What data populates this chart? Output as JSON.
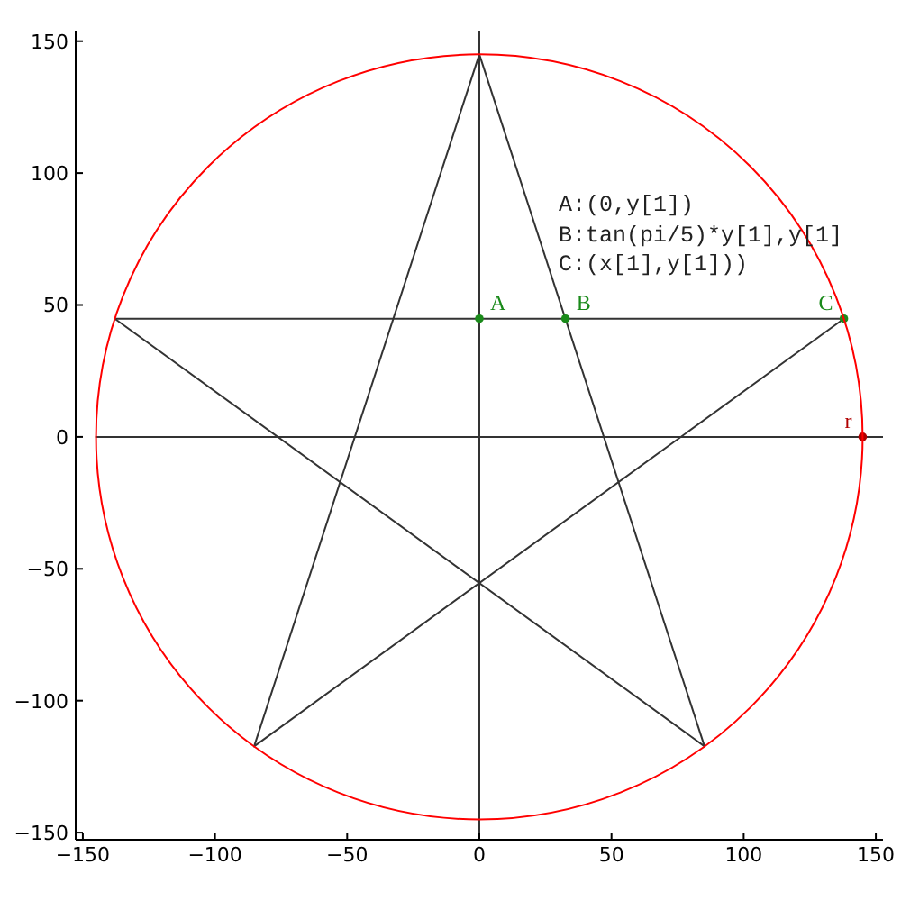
{
  "chart_data": {
    "type": "line",
    "xlim": [
      -152.7,
      152.7
    ],
    "ylim": [
      -152.7,
      154
    ],
    "xticks": [
      -150,
      -100,
      -50,
      0,
      50,
      100,
      150
    ],
    "yticks": [
      -150,
      -100,
      -50,
      0,
      50,
      100,
      150
    ],
    "grid": false,
    "legend": false,
    "series": [
      {
        "color": "#333333",
        "x": [
          -85.2,
          0
        ],
        "values": [
          -117.3,
          145
        ]
      },
      {
        "color": "#333333",
        "x": [
          -85.2,
          137.9
        ],
        "values": [
          -117.3,
          44.8
        ]
      },
      {
        "color": "#333333",
        "x": [
          -137.9,
          137.9
        ],
        "values": [
          44.8,
          44.8
        ]
      },
      {
        "color": "#333333",
        "x": [
          -137.9,
          85.2
        ],
        "values": [
          44.8,
          -117.3
        ]
      },
      {
        "color": "#333333",
        "x": [
          0,
          85.2
        ],
        "values": [
          145,
          -117.3
        ]
      },
      {
        "color": "#333333",
        "x": [
          -145,
          152.7
        ],
        "values": [
          0,
          0
        ]
      },
      {
        "type": "scatter",
        "marker": "circle",
        "color": "#1a8a1a",
        "x": [
          0,
          32.6,
          137.9
        ],
        "values": [
          44.8,
          44.8,
          44.8
        ]
      },
      {
        "type": "scatter",
        "marker": "circle",
        "color": "#b00000",
        "x": [
          145
        ],
        "values": [
          0
        ]
      }
    ],
    "ref_lines": [
      {
        "axis": "x",
        "value": 0,
        "color": "#333333"
      }
    ],
    "annotations": [
      {
        "text": "A",
        "x": 0,
        "y": 44.8
      },
      {
        "text": "B",
        "x": 32.6,
        "y": 44.8
      },
      {
        "text": "C",
        "x": 137.9,
        "y": 44.8
      },
      {
        "text": "r",
        "x": 145,
        "y": 0
      },
      "A:(0,y[1])",
      "B:tan(pi/5)*y[1],y[1]",
      "C:(x[1],y[1]))"
    ]
  }
}
